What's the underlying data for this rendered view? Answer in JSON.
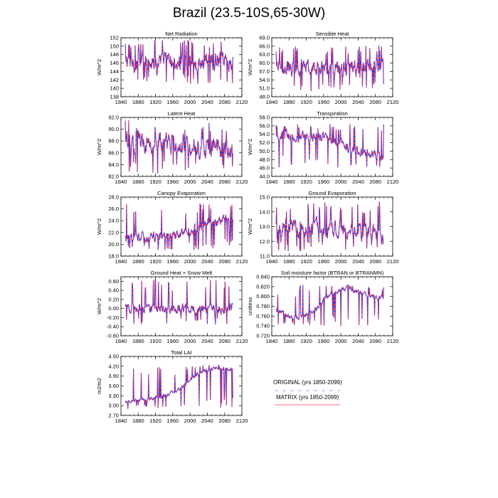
{
  "page_title": "Brazil (23.5-10S,65-30W)",
  "legend": {
    "entries": [
      {
        "label": "ORIGINAL (yrs 1850-2099)",
        "color": "#3333ee",
        "style": "dashed"
      },
      {
        "label": "MATRIX (yrs 1850-2099)",
        "color": "#ee3344",
        "style": "solid"
      }
    ]
  },
  "chart_data": [
    {
      "type": "line",
      "title": "Net Radiation",
      "ylabel": "W/m^2",
      "xlim": [
        1840,
        2120
      ],
      "xticks": [
        "1840",
        "1880",
        "1920",
        "1960",
        "2000",
        "2040",
        "2080",
        "2120"
      ],
      "ylim": [
        138,
        152
      ],
      "yticks": [
        "138",
        "140",
        "142",
        "144",
        "146",
        "148",
        "150",
        "152"
      ],
      "series": [
        {
          "name": "ORIGINAL"
        },
        {
          "name": "MATRIX"
        }
      ],
      "years": [
        1850,
        2099
      ],
      "profile": {
        "base": [
          146.5,
          146.5,
          146.0,
          146.0,
          146.0
        ],
        "amplitude": 3.6,
        "spike_low": 141.0,
        "spike_high": 151.5
      }
    },
    {
      "type": "line",
      "title": "Sensible Heat",
      "ylabel": "W/m^2",
      "xlim": [
        1840,
        2120
      ],
      "xticks": [
        "1840",
        "1880",
        "1920",
        "1960",
        "2000",
        "2040",
        "2080",
        "2120"
      ],
      "ylim": [
        48.0,
        69.0
      ],
      "yticks": [
        "48.0",
        "51.0",
        "54.0",
        "57.0",
        "60.0",
        "63.0",
        "66.0",
        "69.0"
      ],
      "series": [
        {
          "name": "ORIGINAL"
        },
        {
          "name": "MATRIX"
        }
      ],
      "years": [
        1850,
        2099
      ],
      "profile": {
        "base": [
          58.5,
          58.3,
          58.0,
          58.3,
          59.0
        ],
        "amplitude": 4.5,
        "spike_low": 49.5,
        "spike_high": 66.5
      }
    },
    {
      "type": "line",
      "title": "Latent Heat",
      "ylabel": "W/m^2",
      "xlim": [
        1840,
        2120
      ],
      "xticks": [
        "1840",
        "1880",
        "1920",
        "1960",
        "2000",
        "2040",
        "2080",
        "2120"
      ],
      "ylim": [
        82.0,
        92.0
      ],
      "yticks": [
        "82.0",
        "84.0",
        "86.0",
        "88.0",
        "90.0",
        "92.0"
      ],
      "series": [
        {
          "name": "ORIGINAL"
        },
        {
          "name": "MATRIX"
        }
      ],
      "years": [
        1850,
        2099
      ],
      "profile": {
        "base": [
          88.0,
          88.0,
          87.5,
          86.8,
          86.0
        ],
        "amplitude": 2.8,
        "spike_low": 82.5,
        "spike_high": 91.5
      }
    },
    {
      "type": "line",
      "title": "Transpiration",
      "ylabel": "W/m^2",
      "xlim": [
        1840,
        2120
      ],
      "xticks": [
        "1840",
        "1880",
        "1920",
        "1960",
        "2000",
        "2040",
        "2080",
        "2120"
      ],
      "ylim": [
        44.0,
        58.0
      ],
      "yticks": [
        "44.0",
        "46.0",
        "48.0",
        "50.0",
        "52.0",
        "54.0",
        "56.0",
        "58.0"
      ],
      "series": [
        {
          "name": "ORIGINAL"
        },
        {
          "name": "MATRIX"
        }
      ],
      "years": [
        1850,
        2099
      ],
      "profile": {
        "base": [
          53.8,
          53.5,
          53.0,
          50.0,
          48.8
        ],
        "amplitude": 2.0,
        "spike_low": 46.0,
        "spike_high": 56.5
      }
    },
    {
      "type": "line",
      "title": "Canopy Evaporation",
      "ylabel": "W/m^2",
      "xlim": [
        1840,
        2120
      ],
      "xticks": [
        "1840",
        "1880",
        "1920",
        "1960",
        "2000",
        "2040",
        "2080",
        "2120"
      ],
      "ylim": [
        18.0,
        28.0
      ],
      "yticks": [
        "18.0",
        "20.0",
        "22.0",
        "24.0",
        "26.0",
        "28.0"
      ],
      "series": [
        {
          "name": "ORIGINAL"
        },
        {
          "name": "MATRIX"
        }
      ],
      "years": [
        1850,
        2099
      ],
      "profile": {
        "base": [
          21.0,
          21.3,
          21.5,
          23.5,
          24.5
        ],
        "amplitude": 1.4,
        "spike_low": 19.0,
        "spike_high": 27.0
      }
    },
    {
      "type": "line",
      "title": "Ground Evaporation",
      "ylabel": "W/m^2",
      "xlim": [
        1840,
        2120
      ],
      "xticks": [
        "1840",
        "1880",
        "1920",
        "1960",
        "2000",
        "2040",
        "2080",
        "2120"
      ],
      "ylim": [
        11.0,
        15.0
      ],
      "yticks": [
        "11.0",
        "12.0",
        "13.0",
        "14.0",
        "15.0"
      ],
      "series": [
        {
          "name": "ORIGINAL"
        },
        {
          "name": "MATRIX"
        }
      ],
      "years": [
        1850,
        2099
      ],
      "profile": {
        "base": [
          12.9,
          12.9,
          12.9,
          12.7,
          12.4
        ],
        "amplitude": 0.9,
        "spike_low": 11.3,
        "spike_high": 14.7
      }
    },
    {
      "type": "line",
      "title": "Ground Heat + Snow Melt",
      "ylabel": "W/m^2",
      "xlim": [
        1840,
        2120
      ],
      "xticks": [
        "1840",
        "1880",
        "1920",
        "1960",
        "2000",
        "2040",
        "2080",
        "2120"
      ],
      "ylim": [
        -0.6,
        0.7
      ],
      "yticks": [
        "-0.60",
        "-0.40",
        "-0.20",
        "0.00",
        "0.20",
        "0.40",
        "0.60"
      ],
      "series": [
        {
          "name": "ORIGINAL"
        },
        {
          "name": "MATRIX"
        }
      ],
      "years": [
        1850,
        2099
      ],
      "profile": {
        "base": [
          0.0,
          0.0,
          0.0,
          0.0,
          0.0
        ],
        "amplitude": 0.16,
        "spike_low": -0.35,
        "spike_high": 0.65
      }
    },
    {
      "type": "line",
      "title": "Soil moisture factor (BTRAN or BTRANMN)",
      "ylabel": "unitless",
      "xlim": [
        1840,
        2120
      ],
      "xticks": [
        "1840",
        "1880",
        "1920",
        "1960",
        "2000",
        "2040",
        "2080",
        "2120"
      ],
      "ylim": [
        0.72,
        0.84
      ],
      "yticks": [
        "0.720",
        "0.740",
        "0.760",
        "0.780",
        "0.800",
        "0.820",
        "0.840"
      ],
      "series": [
        {
          "name": "ORIGINAL"
        },
        {
          "name": "MATRIX"
        }
      ],
      "years": [
        1850,
        2099
      ],
      "profile": {
        "base": [
          0.772,
          0.755,
          0.768,
          0.805,
          0.818,
          0.804,
          0.797
        ],
        "amplitude": 0.008,
        "spike_low": 0.74,
        "spike_high": 0.824
      }
    },
    {
      "type": "line",
      "title": "Total LAI",
      "ylabel": "m2/m2",
      "xlim": [
        1840,
        2120
      ],
      "xticks": [
        "1840",
        "1880",
        "1920",
        "1960",
        "2000",
        "2040",
        "2080",
        "2120"
      ],
      "ylim": [
        2.7,
        4.5
      ],
      "yticks": [
        "2.70",
        "3.00",
        "3.30",
        "3.60",
        "3.90",
        "4.20",
        "4.50"
      ],
      "series": [
        {
          "name": "ORIGINAL"
        },
        {
          "name": "MATRIX"
        }
      ],
      "years": [
        1850,
        2099
      ],
      "profile": {
        "base": [
          3.1,
          3.2,
          3.25,
          3.5,
          3.95,
          4.15,
          4.1
        ],
        "amplitude": 0.08,
        "spike_low": 2.9,
        "spike_high": 4.25
      }
    }
  ]
}
